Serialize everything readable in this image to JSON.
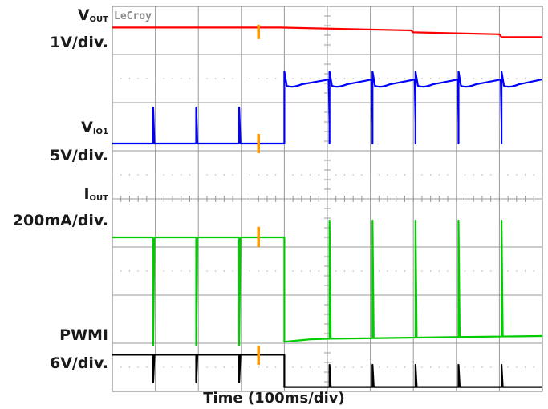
{
  "brand": "LeCroy",
  "xlabel": "Time (100ms/div)",
  "channels": [
    {
      "sig": "V",
      "sub": "OUT",
      "scale": "1V/div."
    },
    {
      "sig": "V",
      "sub": "IO1",
      "scale": "5V/div."
    },
    {
      "sig": "I",
      "sub": "OUT",
      "scale": "200mA/div."
    },
    {
      "sig": "PWMI",
      "sub": "",
      "scale": "6V/div."
    }
  ],
  "chart_data": {
    "type": "line",
    "title": "",
    "xlabel": "Time (100ms/div)",
    "x_divisions": 10,
    "y_divisions": 8,
    "xlim": [
      0,
      10
    ],
    "ylim": [
      0,
      8
    ],
    "grid": true,
    "trigger_marker_x_div": 3.4,
    "colors": {
      "VOUT": "#ff0000",
      "VIO1": "#0000ff",
      "IOUT": "#00cc00",
      "PWMI": "#000000",
      "trigger": "#ff9900"
    },
    "series": [
      {
        "name": "VOUT",
        "points": [
          [
            0,
            7.56
          ],
          [
            3.9,
            7.56
          ],
          [
            6.95,
            7.5
          ],
          [
            7.0,
            7.46
          ],
          [
            9.0,
            7.42
          ],
          [
            9.05,
            7.36
          ],
          [
            10,
            7.36
          ]
        ],
        "spikes_x": []
      },
      {
        "name": "VIO1",
        "baseline_x_end": 4.0,
        "low": 5.15,
        "high": 6.65,
        "spike_top": 5.9,
        "spikes_x": [
          0.95,
          1.95,
          2.95
        ],
        "pulse_x": [
          4.0,
          5.05,
          6.05,
          7.05,
          8.05,
          9.05
        ],
        "settle": 6.3
      },
      {
        "name": "IOUT",
        "level_high": 3.2,
        "level_low": 1.08,
        "step_x": 4.0,
        "spike_low": 0.95,
        "spikes_x": [
          0.95,
          1.95,
          2.95
        ],
        "spikes_after_x": [
          5.05,
          6.05,
          7.05,
          8.05,
          9.05
        ],
        "spike_after_top": 3.55
      },
      {
        "name": "PWMI",
        "level_high": 0.76,
        "level_low": 0.09,
        "step_x": 4.0,
        "spikes_x": [
          0.95,
          1.95,
          2.95
        ],
        "spikes_after_x": [
          5.05,
          6.05,
          7.05,
          8.05,
          9.05
        ],
        "spike_after_top": 0.55
      }
    ]
  }
}
